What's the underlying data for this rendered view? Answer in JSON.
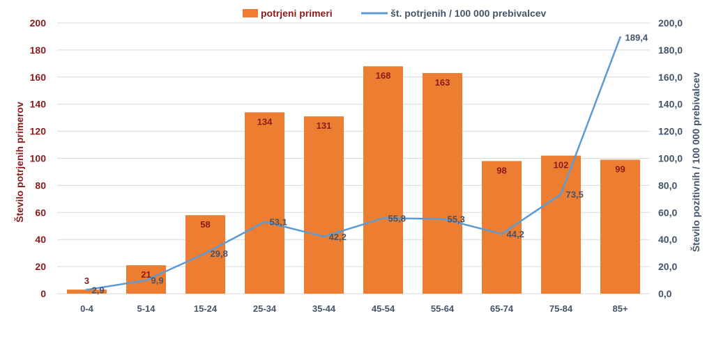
{
  "chart_data": {
    "type": "bar",
    "categories": [
      "0-4",
      "5-14",
      "15-24",
      "25-34",
      "35-44",
      "45-54",
      "55-64",
      "65-74",
      "75-84",
      "85+"
    ],
    "series": [
      {
        "name": "potrjeni primeri",
        "kind": "bar",
        "axis": "left",
        "values": [
          3,
          21,
          58,
          134,
          131,
          168,
          163,
          98,
          102,
          99
        ],
        "labels": [
          "3",
          "21",
          "58",
          "134",
          "131",
          "168",
          "163",
          "98",
          "102",
          "99"
        ],
        "color": "#ed7d31"
      },
      {
        "name": "št. potrjenih / 100 000 prebivalcev",
        "kind": "line",
        "axis": "right",
        "values": [
          2.9,
          9.9,
          29.8,
          53.1,
          42.2,
          55.8,
          55.3,
          44.2,
          73.5,
          189.4
        ],
        "labels": [
          "2,9",
          "9,9",
          "29,8",
          "53,1",
          "42,2",
          "55,8",
          "55,3",
          "44,2",
          "73,5",
          "189,4"
        ],
        "color": "#5b9bd5"
      }
    ],
    "ylabel": "Število potrjenih primerov",
    "ylabel_right": "Število pozitivnih / 100 000 prebivalcev",
    "ylim": [
      0,
      200
    ],
    "ylim_right": [
      0,
      200
    ],
    "yticks": [
      "0",
      "20",
      "40",
      "60",
      "80",
      "100",
      "120",
      "140",
      "160",
      "180",
      "200"
    ],
    "yticks_right": [
      "0,0",
      "20,0",
      "40,0",
      "60,0",
      "80,0",
      "100,0",
      "120,0",
      "140,0",
      "160,0",
      "180,0",
      "200,0"
    ],
    "grid": true,
    "legend_position": "top-center",
    "colors": {
      "gridline": "#d9d9d9",
      "left_text": "#8b1a1a",
      "right_text": "#44546a"
    }
  }
}
